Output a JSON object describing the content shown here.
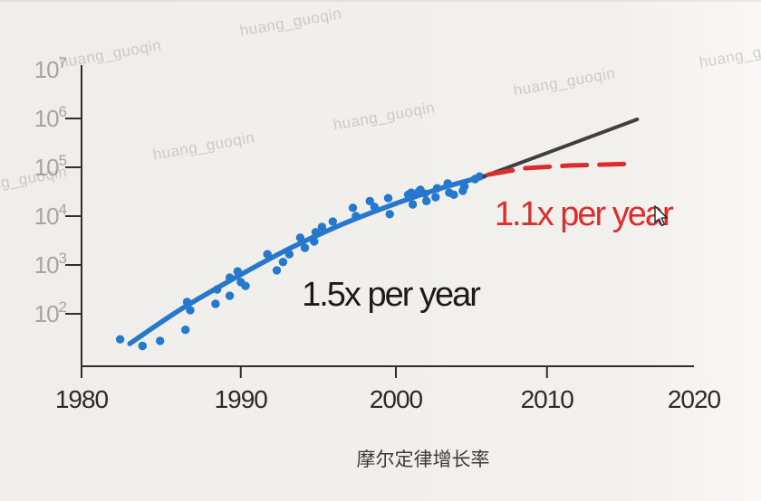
{
  "watermark": {
    "text": "huang_guoqin",
    "color": "rgba(145,139,128,0.36)"
  },
  "chart_data": {
    "type": "scatter",
    "title": "摩尔定律增长率",
    "x_ticks": [
      1980,
      1990,
      2000,
      2010,
      2020
    ],
    "y_tick_exponents": [
      2,
      3,
      4,
      5,
      6,
      7
    ],
    "x_range": [
      1980,
      2020
    ],
    "y_range_log10": [
      1.25,
      7.1
    ],
    "grid": false,
    "axis_color": "#2e2e2e",
    "x_label_color": "#2b2b2b",
    "y_label_color": "#a8a49e",
    "title_color": "#3a3a3a",
    "series": [
      {
        "name": "observed",
        "kind": "scatter",
        "color": "#2578cb",
        "points": [
          [
            1982.4,
            30
          ],
          [
            1983.8,
            22
          ],
          [
            1984.9,
            28
          ],
          [
            1986.5,
            47
          ],
          [
            1986.6,
            174
          ],
          [
            1986.8,
            118
          ],
          [
            1988.4,
            160
          ],
          [
            1988.5,
            316
          ],
          [
            1989.3,
            234
          ],
          [
            1989.3,
            550
          ],
          [
            1989.8,
            740
          ],
          [
            1990.0,
            447
          ],
          [
            1990.3,
            372
          ],
          [
            1991.7,
            1660
          ],
          [
            1992.3,
            776
          ],
          [
            1992.7,
            1150
          ],
          [
            1993.1,
            1660
          ],
          [
            1993.8,
            3630
          ],
          [
            1994.1,
            2240
          ],
          [
            1994.7,
            3020
          ],
          [
            1994.8,
            4680
          ],
          [
            1995.2,
            6030
          ],
          [
            1995.9,
            7760
          ],
          [
            1997.2,
            14800
          ],
          [
            1997.4,
            10000
          ],
          [
            1998.3,
            20400
          ],
          [
            1998.6,
            15500
          ],
          [
            1999.5,
            23400
          ],
          [
            1999.6,
            11000
          ],
          [
            2000.8,
            27500
          ],
          [
            2001.0,
            30200
          ],
          [
            2001.1,
            17400
          ],
          [
            2001.5,
            31600
          ],
          [
            2001.6,
            34700
          ],
          [
            2001.9,
            28800
          ],
          [
            2002.0,
            20400
          ],
          [
            2002.6,
            24500
          ],
          [
            2002.7,
            37200
          ],
          [
            2003.4,
            46800
          ],
          [
            2003.5,
            30200
          ],
          [
            2003.8,
            27500
          ],
          [
            2004.4,
            33100
          ],
          [
            2004.5,
            40700
          ],
          [
            2005.2,
            57500
          ],
          [
            2005.5,
            64600
          ]
        ]
      },
      {
        "name": "fit-1.5x-per-year",
        "kind": "line",
        "color": "#2578cb",
        "width": 5.5,
        "points": [
          [
            1983.0,
            24.5
          ],
          [
            1986.2,
            123
          ],
          [
            1989.7,
            560
          ],
          [
            1993.1,
            2160
          ],
          [
            1996.6,
            7000
          ],
          [
            2000.2,
            19100
          ],
          [
            2003.1,
            38400
          ],
          [
            2005.8,
            65300
          ]
        ]
      },
      {
        "name": "projection-continued-trend",
        "kind": "line",
        "color": "#3f3f3f",
        "width": 4,
        "points": [
          [
            2005.8,
            65300
          ],
          [
            2016.1,
            960000
          ]
        ]
      },
      {
        "name": "projection-1.1x-per-year",
        "kind": "line",
        "dashed": true,
        "color": "#dd2c2c",
        "width": 5,
        "points": [
          [
            2006.1,
            71000
          ],
          [
            2008.5,
            95500
          ],
          [
            2011.5,
            109000
          ],
          [
            2015.8,
            118000
          ]
        ]
      }
    ],
    "annotations": [
      {
        "text": "1.5x per year",
        "color": "#1b1b1b",
        "year": 1993.9,
        "value": 255
      },
      {
        "text": "1.1x per year",
        "color": "#dd2c2c",
        "year": 2006.5,
        "value": 11400
      }
    ]
  }
}
